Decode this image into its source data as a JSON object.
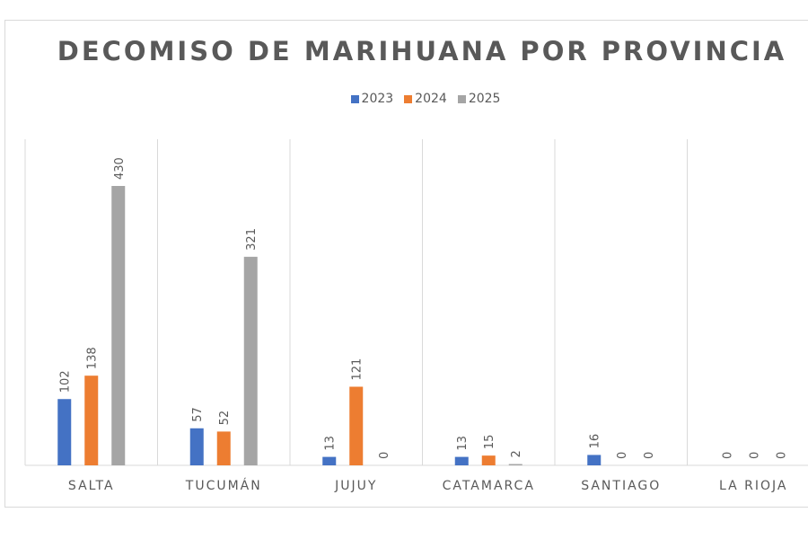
{
  "chart_data": {
    "type": "bar",
    "title": "DECOMISO DE MARIHUANA POR PROVINCIA",
    "categories": [
      "SALTA",
      "TUCUMÁN",
      "JUJUY",
      "CATAMARCA",
      "SANTIAGO",
      "LA RIOJA"
    ],
    "series": [
      {
        "name": "2023",
        "color": "#4472c4",
        "values": [
          102,
          57,
          13,
          13,
          16,
          0
        ]
      },
      {
        "name": "2024",
        "color": "#ed7d31",
        "values": [
          138,
          52,
          121,
          15,
          0,
          0
        ]
      },
      {
        "name": "2025",
        "color": "#a5a5a5",
        "values": [
          430,
          321,
          0,
          2,
          0,
          0
        ]
      }
    ],
    "legend_position": "top",
    "data_labels": true,
    "grid": "vertical category separators",
    "ylim": [
      0,
      500
    ]
  }
}
